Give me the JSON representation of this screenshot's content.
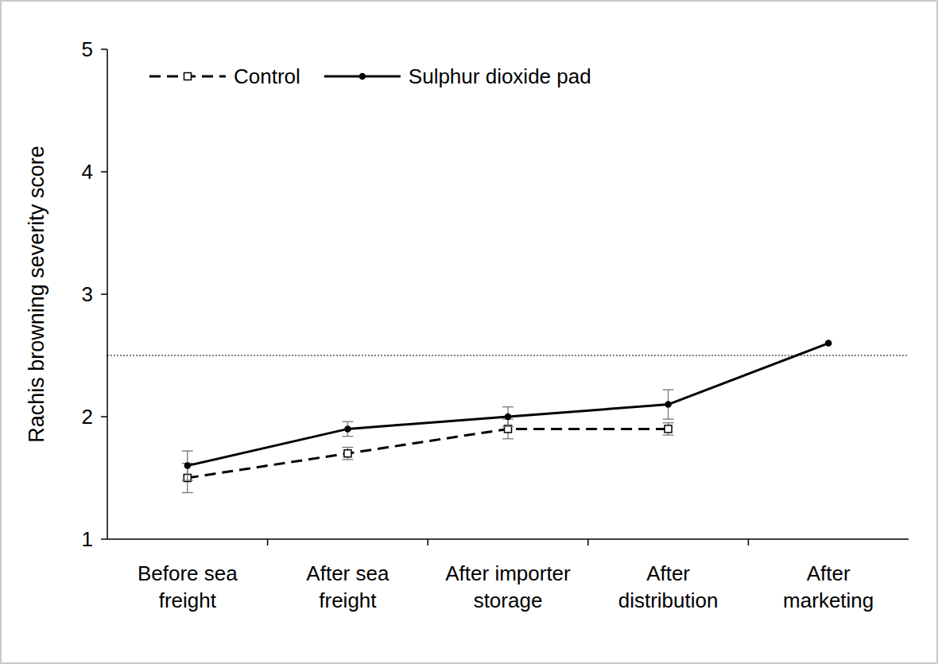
{
  "chart_data": {
    "type": "line",
    "y_label": "Rachis browning severity score",
    "categories": [
      "Before sea freight",
      "After sea freight",
      "After importer storage",
      "After distribution",
      "After marketing"
    ],
    "series": [
      {
        "name": "Control",
        "color": "#000000",
        "line_style": "dashed",
        "marker": "square",
        "values": [
          1.5,
          1.7,
          1.9,
          1.9,
          null
        ],
        "errors": [
          0.12,
          0.05,
          0.08,
          0.05,
          null
        ]
      },
      {
        "name": "Sulphur dioxide pad",
        "color": "#000000",
        "line_style": "solid",
        "marker": "circle",
        "values": [
          1.6,
          1.9,
          2.0,
          2.1,
          2.6
        ],
        "errors": [
          0.12,
          0.06,
          0.08,
          0.12,
          null
        ]
      }
    ],
    "reference_line": 2.5,
    "ylim": [
      1,
      5
    ],
    "yticks": [
      1,
      2,
      3,
      4,
      5
    ],
    "grid": false,
    "legend": "upper left"
  }
}
